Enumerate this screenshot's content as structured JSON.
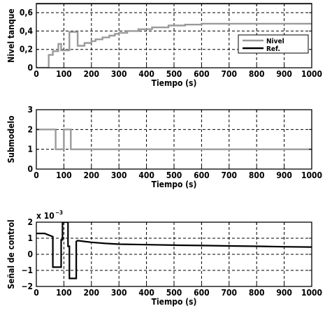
{
  "chart_data": [
    {
      "type": "line",
      "xlabel": "Tiempo (s)",
      "ylabel": "Nivel tanque",
      "xlim": [
        0,
        1000
      ],
      "ylim": [
        0,
        0.7
      ],
      "xticks": [
        "0",
        "100",
        "200",
        "300",
        "400",
        "500",
        "600",
        "700",
        "800",
        "900",
        "1000"
      ],
      "yticks": [
        "0",
        "0,2",
        "0,4",
        "0,6"
      ],
      "grid": true,
      "legend": "right",
      "series": [
        {
          "name": "Nivel",
          "color": "#9a9a9a",
          "step": true,
          "x": [
            0,
            30,
            45,
            60,
            80,
            90,
            120,
            150,
            175,
            200,
            215,
            240,
            265,
            285,
            300,
            330,
            370,
            420,
            480,
            540,
            600,
            700,
            800,
            1000
          ],
          "y": [
            0,
            0,
            0.14,
            0.18,
            0.26,
            0.19,
            0.39,
            0.24,
            0.27,
            0.29,
            0.31,
            0.33,
            0.35,
            0.37,
            0.38,
            0.4,
            0.42,
            0.44,
            0.46,
            0.47,
            0.48,
            0.48,
            0.48,
            0.48
          ]
        },
        {
          "name": "Ref.",
          "color": "#000000",
          "step": true,
          "x": [
            0,
            1000
          ],
          "y": [
            0.7,
            0.7
          ]
        }
      ]
    },
    {
      "type": "line",
      "xlabel": "Tiempo (s)",
      "ylabel": "Submodelo",
      "xlim": [
        0,
        1000
      ],
      "ylim": [
        0,
        3
      ],
      "xticks": [
        "0",
        "100",
        "200",
        "300",
        "400",
        "500",
        "600",
        "700",
        "800",
        "900",
        "1000"
      ],
      "yticks": [
        "0",
        "1",
        "2",
        "3"
      ],
      "grid": true,
      "series": [
        {
          "color": "#9a9a9a",
          "step": true,
          "x": [
            0,
            70,
            100,
            125,
            1000
          ],
          "y": [
            2,
            1,
            2,
            1,
            1
          ]
        }
      ]
    },
    {
      "type": "line",
      "xlabel": "Tiempo (s)",
      "ylabel": "Señal de control",
      "multiplier": "x 10",
      "multiplier_exp": "−3",
      "xlim": [
        0,
        1000
      ],
      "ylim": [
        -2,
        2
      ],
      "xticks": [
        "0",
        "100",
        "200",
        "300",
        "400",
        "500",
        "600",
        "700",
        "800",
        "900",
        "1000"
      ],
      "yticks": [
        "−2",
        "−1",
        "0",
        "1",
        "2"
      ],
      "grid": true,
      "series": [
        {
          "color": "#000000",
          "x": [
            0,
            30,
            60,
            60,
            90,
            90,
            95,
            95,
            115,
            115,
            120,
            120,
            145,
            145,
            150,
            200,
            250,
            300,
            400,
            500,
            600,
            700,
            800,
            900,
            1000
          ],
          "y": [
            1.3,
            1.3,
            1.1,
            -0.8,
            -0.8,
            0.9,
            0.9,
            2.0,
            2.0,
            0.5,
            0.5,
            -1.5,
            -1.5,
            0.8,
            0.85,
            0.75,
            0.68,
            0.63,
            0.6,
            0.57,
            0.55,
            0.52,
            0.5,
            0.47,
            0.45
          ]
        }
      ]
    }
  ]
}
